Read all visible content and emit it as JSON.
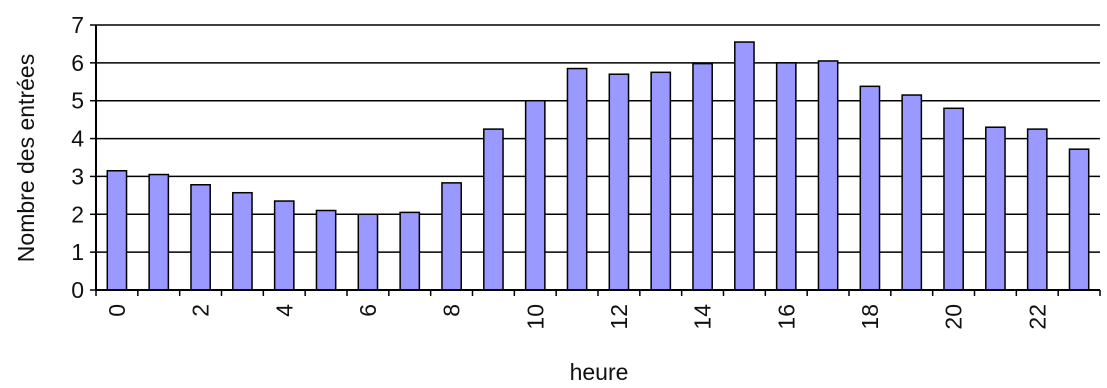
{
  "chart_data": {
    "type": "bar",
    "title": "",
    "xlabel": "heure",
    "ylabel": "Nombre des entrées",
    "ylim": [
      0,
      7
    ],
    "yticks": [
      0,
      1,
      2,
      3,
      4,
      5,
      6,
      7
    ],
    "grid": true,
    "legend": "none",
    "categories": [
      "0",
      "1",
      "2",
      "3",
      "4",
      "5",
      "6",
      "7",
      "8",
      "9",
      "10",
      "11",
      "12",
      "13",
      "14",
      "15",
      "16",
      "17",
      "18",
      "19",
      "20",
      "21",
      "22",
      "23"
    ],
    "xtick_labels": [
      "0",
      "",
      "2",
      "",
      "4",
      "",
      "6",
      "",
      "8",
      "",
      "10",
      "",
      "12",
      "",
      "14",
      "",
      "16",
      "",
      "18",
      "",
      "20",
      "",
      "22",
      ""
    ],
    "values": [
      3.15,
      3.05,
      2.78,
      2.57,
      2.35,
      2.1,
      2.0,
      2.05,
      2.83,
      4.25,
      5.0,
      5.85,
      5.7,
      5.75,
      5.98,
      6.55,
      6.0,
      6.05,
      5.38,
      5.15,
      4.8,
      4.3,
      4.25,
      3.72
    ],
    "colors": {
      "bar_fill": "#9999ff",
      "bar_stroke": "#000000",
      "grid": "#000000"
    }
  }
}
